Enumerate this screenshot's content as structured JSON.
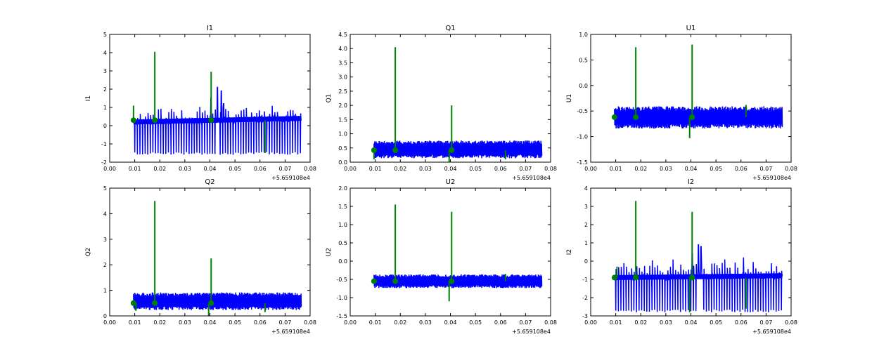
{
  "figure": {
    "offset_label": "+5.659108e4"
  },
  "colors": {
    "series_a": "#0000ff",
    "series_b": "#008000",
    "axes": "#000000"
  },
  "chart_data": [
    {
      "type": "line",
      "title": "I1",
      "ylabel": "I1",
      "xlim": [
        0.0,
        0.08
      ],
      "ylim": [
        -2,
        5
      ],
      "yticks": [
        "-2",
        "-1",
        "0",
        "1",
        "2",
        "3",
        "4",
        "5"
      ],
      "xticks": [
        "0.00",
        "0.01",
        "0.02",
        "0.03",
        "0.04",
        "0.05",
        "0.06",
        "0.07",
        "0.08"
      ],
      "series": [
        {
          "name": "blue",
          "baseline_start": 0.2,
          "baseline_end": 0.4,
          "low": -1.6,
          "high": 1.0,
          "x_start": 0.0095,
          "x_end": 0.0765,
          "peaks": [
            [
              0.0404,
              1.5
            ],
            [
              0.043,
              2.1
            ],
            [
              0.0445,
              1.9
            ],
            [
              0.0455,
              1.2
            ]
          ]
        },
        {
          "name": "green",
          "baseline": 0.3,
          "markers_x": [
            0.0095,
            0.018,
            0.0405
          ],
          "spikes": [
            [
              0.0095,
              1.1
            ],
            [
              0.018,
              4.05
            ],
            [
              0.0405,
              2.95
            ],
            [
              0.062,
              -1.5
            ]
          ]
        }
      ]
    },
    {
      "type": "line",
      "title": "Q1",
      "ylabel": "Q1",
      "xlim": [
        0.0,
        0.08
      ],
      "ylim": [
        0,
        4.5
      ],
      "yticks": [
        "0.0",
        "0.5",
        "1.0",
        "1.5",
        "2.0",
        "2.5",
        "3.0",
        "3.5",
        "4.0",
        "4.5"
      ],
      "xticks": [
        "0.00",
        "0.01",
        "0.02",
        "0.03",
        "0.04",
        "0.05",
        "0.06",
        "0.07",
        "0.08"
      ],
      "series": [
        {
          "name": "blue",
          "baseline_start": 0.42,
          "baseline_end": 0.42,
          "low": 0.2,
          "high": 0.7,
          "x_start": 0.0095,
          "x_end": 0.0765,
          "peaks": []
        },
        {
          "name": "green",
          "baseline": 0.42,
          "markers_x": [
            0.0095,
            0.018,
            0.0405
          ],
          "spikes": [
            [
              0.0095,
              0.1
            ],
            [
              0.018,
              4.05
            ],
            [
              0.0405,
              2.0
            ],
            [
              0.0395,
              0.0
            ],
            [
              0.062,
              0.1
            ]
          ]
        }
      ]
    },
    {
      "type": "line",
      "title": "U1",
      "ylabel": "U1",
      "xlim": [
        0.0,
        0.08
      ],
      "ylim": [
        -1.5,
        1.0
      ],
      "yticks": [
        "-1.5",
        "-1.0",
        "-0.5",
        "0.0",
        "0.5",
        "1.0"
      ],
      "xticks": [
        "0.00",
        "0.01",
        "0.02",
        "0.03",
        "0.04",
        "0.05",
        "0.06",
        "0.07",
        "0.08"
      ],
      "series": [
        {
          "name": "blue",
          "baseline_start": -0.62,
          "baseline_end": -0.62,
          "low": -0.8,
          "high": -0.45,
          "x_start": 0.0095,
          "x_end": 0.0765,
          "peaks": []
        },
        {
          "name": "green",
          "baseline": -0.62,
          "markers_x": [
            0.0095,
            0.018,
            0.0405
          ],
          "spikes": [
            [
              0.018,
              0.75
            ],
            [
              0.0405,
              0.8
            ],
            [
              0.0395,
              -1.03
            ],
            [
              0.062,
              -0.38
            ]
          ]
        }
      ]
    },
    {
      "type": "line",
      "title": "Q2",
      "ylabel": "Q2",
      "xlim": [
        0.0,
        0.08
      ],
      "ylim": [
        0,
        5
      ],
      "yticks": [
        "0",
        "1",
        "2",
        "3",
        "4",
        "5"
      ],
      "xticks": [
        "0.00",
        "0.01",
        "0.02",
        "0.03",
        "0.04",
        "0.05",
        "0.06",
        "0.07",
        "0.08"
      ],
      "series": [
        {
          "name": "blue",
          "baseline_start": 0.5,
          "baseline_end": 0.5,
          "low": 0.3,
          "high": 0.85,
          "x_start": 0.0095,
          "x_end": 0.0765,
          "peaks": []
        },
        {
          "name": "green",
          "baseline": 0.5,
          "markers_x": [
            0.0095,
            0.018,
            0.0405
          ],
          "spikes": [
            [
              0.0105,
              0.2
            ],
            [
              0.018,
              4.5
            ],
            [
              0.0405,
              2.25
            ],
            [
              0.0395,
              0.0
            ],
            [
              0.062,
              0.15
            ]
          ]
        }
      ]
    },
    {
      "type": "line",
      "title": "U2",
      "ylabel": "U2",
      "xlim": [
        0.0,
        0.08
      ],
      "ylim": [
        -1.5,
        2.0
      ],
      "yticks": [
        "-1.5",
        "-1.0",
        "-0.5",
        "0.0",
        "0.5",
        "1.0",
        "1.5",
        "2.0"
      ],
      "xticks": [
        "0.00",
        "0.01",
        "0.02",
        "0.03",
        "0.04",
        "0.05",
        "0.06",
        "0.07",
        "0.08"
      ],
      "series": [
        {
          "name": "blue",
          "baseline_start": -0.55,
          "baseline_end": -0.55,
          "low": -0.7,
          "high": -0.4,
          "x_start": 0.0095,
          "x_end": 0.0765,
          "peaks": []
        },
        {
          "name": "green",
          "baseline": -0.55,
          "markers_x": [
            0.0095,
            0.018,
            0.0405
          ],
          "spikes": [
            [
              0.018,
              1.55
            ],
            [
              0.0405,
              1.35
            ],
            [
              0.0395,
              -1.1
            ],
            [
              0.062,
              -0.35
            ]
          ]
        }
      ]
    },
    {
      "type": "line",
      "title": "I2",
      "ylabel": "I2",
      "xlim": [
        0.0,
        0.08
      ],
      "ylim": [
        -3,
        4
      ],
      "yticks": [
        "-3",
        "-2",
        "-1",
        "0",
        "1",
        "2",
        "3",
        "4"
      ],
      "xticks": [
        "0.00",
        "0.01",
        "0.02",
        "0.03",
        "0.04",
        "0.05",
        "0.06",
        "0.07",
        "0.08"
      ],
      "series": [
        {
          "name": "blue",
          "baseline_start": -0.9,
          "baseline_end": -0.8,
          "low": -2.8,
          "high": 0.0,
          "x_start": 0.0095,
          "x_end": 0.0765,
          "peaks": [
            [
              0.0405,
              0.4
            ],
            [
              0.043,
              0.9
            ],
            [
              0.044,
              0.8
            ],
            [
              0.061,
              0.2
            ]
          ]
        },
        {
          "name": "green",
          "baseline": -0.9,
          "markers_x": [
            0.0095,
            0.018,
            0.0405
          ],
          "spikes": [
            [
              0.018,
              3.3
            ],
            [
              0.0405,
              2.7
            ],
            [
              0.0395,
              -2.8
            ],
            [
              0.062,
              -2.6
            ],
            [
              0.0105,
              -0.3
            ]
          ]
        }
      ]
    }
  ]
}
